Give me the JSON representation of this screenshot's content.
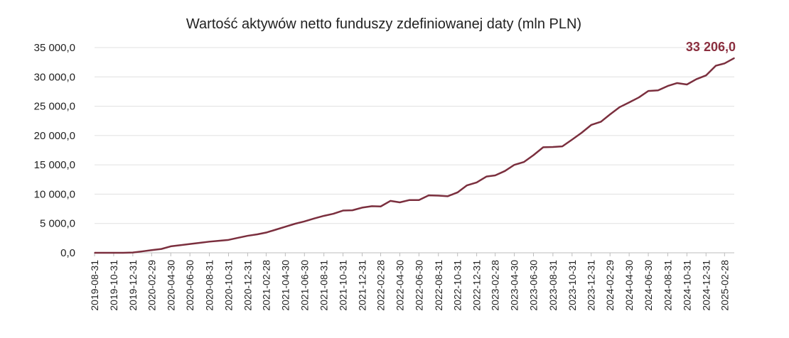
{
  "chart_data": {
    "type": "line",
    "title": "Wartość aktywów netto funduszy zdefiniowanej daty (mln PLN)",
    "xlabel": "",
    "ylabel": "",
    "ylim": [
      0,
      35000
    ],
    "yticks": [
      "0,0",
      "5 000,0",
      "10 000,0",
      "15 000,0",
      "20 000,0",
      "25 000,0",
      "30 000,0",
      "35 000,0"
    ],
    "ytick_values": [
      0,
      5000,
      10000,
      15000,
      20000,
      25000,
      30000,
      35000
    ],
    "grid": true,
    "line_color": "#7b2f3e",
    "label_color": "#8b2f3f",
    "xtick_labels": [
      "2019-08-31",
      "2019-10-31",
      "2019-12-31",
      "2020-02-29",
      "2020-04-30",
      "2020-06-30",
      "2020-08-31",
      "2020-10-31",
      "2020-12-31",
      "2021-02-28",
      "2021-04-30",
      "2021-06-30",
      "2021-08-31",
      "2021-10-31",
      "2021-12-31",
      "2022-02-28",
      "2022-04-30",
      "2022-06-30",
      "2022-08-31",
      "2022-10-31",
      "2022-12-31",
      "2023-02-28",
      "2023-04-30",
      "2023-06-30",
      "2023-08-31",
      "2023-10-31",
      "2023-12-31",
      "2024-02-29",
      "2024-04-30",
      "2024-06-30",
      "2024-08-31",
      "2024-10-31",
      "2024-12-31",
      "2025-02-28"
    ],
    "x": [
      "2019-08-31",
      "2019-09-30",
      "2019-10-31",
      "2019-11-30",
      "2019-12-31",
      "2020-01-31",
      "2020-02-29",
      "2020-03-31",
      "2020-04-30",
      "2020-05-31",
      "2020-06-30",
      "2020-07-31",
      "2020-08-31",
      "2020-09-30",
      "2020-10-31",
      "2020-11-30",
      "2020-12-31",
      "2021-01-31",
      "2021-02-28",
      "2021-03-31",
      "2021-04-30",
      "2021-05-31",
      "2021-06-30",
      "2021-07-31",
      "2021-08-31",
      "2021-09-30",
      "2021-10-31",
      "2021-11-30",
      "2021-12-31",
      "2022-01-31",
      "2022-02-28",
      "2022-03-31",
      "2022-04-30",
      "2022-05-31",
      "2022-06-30",
      "2022-07-31",
      "2022-08-31",
      "2022-09-30",
      "2022-10-31",
      "2022-11-30",
      "2022-12-31",
      "2023-01-31",
      "2023-02-28",
      "2023-03-31",
      "2023-04-30",
      "2023-05-31",
      "2023-06-30",
      "2023-07-31",
      "2023-08-31",
      "2023-09-30",
      "2023-10-31",
      "2023-11-30",
      "2023-12-31",
      "2024-01-31",
      "2024-02-29",
      "2024-03-31",
      "2024-04-30",
      "2024-05-31",
      "2024-06-30",
      "2024-07-31",
      "2024-08-31",
      "2024-09-30",
      "2024-10-31",
      "2024-11-30",
      "2024-12-31",
      "2025-01-31",
      "2025-02-28",
      "2025-03-31"
    ],
    "series": [
      {
        "values": [
          0,
          0,
          0,
          0,
          50,
          250,
          450,
          650,
          1100,
          1300,
          1500,
          1700,
          1900,
          2050,
          2200,
          2550,
          2900,
          3150,
          3450,
          3950,
          4450,
          4950,
          5350,
          5850,
          6300,
          6650,
          7200,
          7250,
          7700,
          7950,
          7900,
          8850,
          8600,
          9000,
          9000,
          9800,
          9750,
          9650,
          10300,
          11500,
          12000,
          13000,
          13200,
          13950,
          15000,
          15500,
          16650,
          18000,
          18050,
          18150,
          19300,
          20450,
          21800,
          22350,
          23600,
          24850,
          25650,
          26500,
          27600,
          27700,
          28450,
          28950,
          28700,
          29600,
          30250,
          31900,
          32300,
          33206
        ]
      }
    ],
    "annotations": [
      {
        "text": "33 206,0",
        "point": "last"
      }
    ]
  }
}
